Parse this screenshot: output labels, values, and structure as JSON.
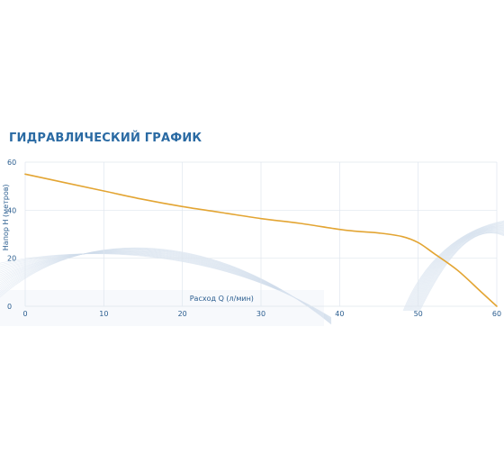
{
  "chart_data": {
    "type": "line",
    "title": "ГИДРАВЛИЧЕСКИЙ ГРАФИК",
    "xlabel": "Расход Q (л/мин)",
    "ylabel": "Напор Н (метров)",
    "xlim": [
      0,
      60
    ],
    "ylim": [
      0,
      60
    ],
    "xticks": [
      "0",
      "10",
      "20",
      "30",
      "40",
      "50",
      "60"
    ],
    "yticks": [
      "0",
      "20",
      "40",
      "60"
    ],
    "grid": true,
    "series": [
      {
        "x": [
          0,
          5,
          10,
          15,
          20,
          25,
          30,
          35,
          40,
          43,
          45,
          48,
          50,
          52,
          55,
          58,
          60
        ],
        "values": [
          55,
          51.5,
          48,
          44.5,
          41.5,
          39,
          36.5,
          34.5,
          32,
          31,
          30.5,
          29,
          26.5,
          22,
          15,
          6,
          0
        ]
      }
    ],
    "colors": {
      "line": "#e3a533",
      "grid": "#dfe6ee",
      "text": "#2a5d8f",
      "title": "#2a6aa3"
    }
  }
}
